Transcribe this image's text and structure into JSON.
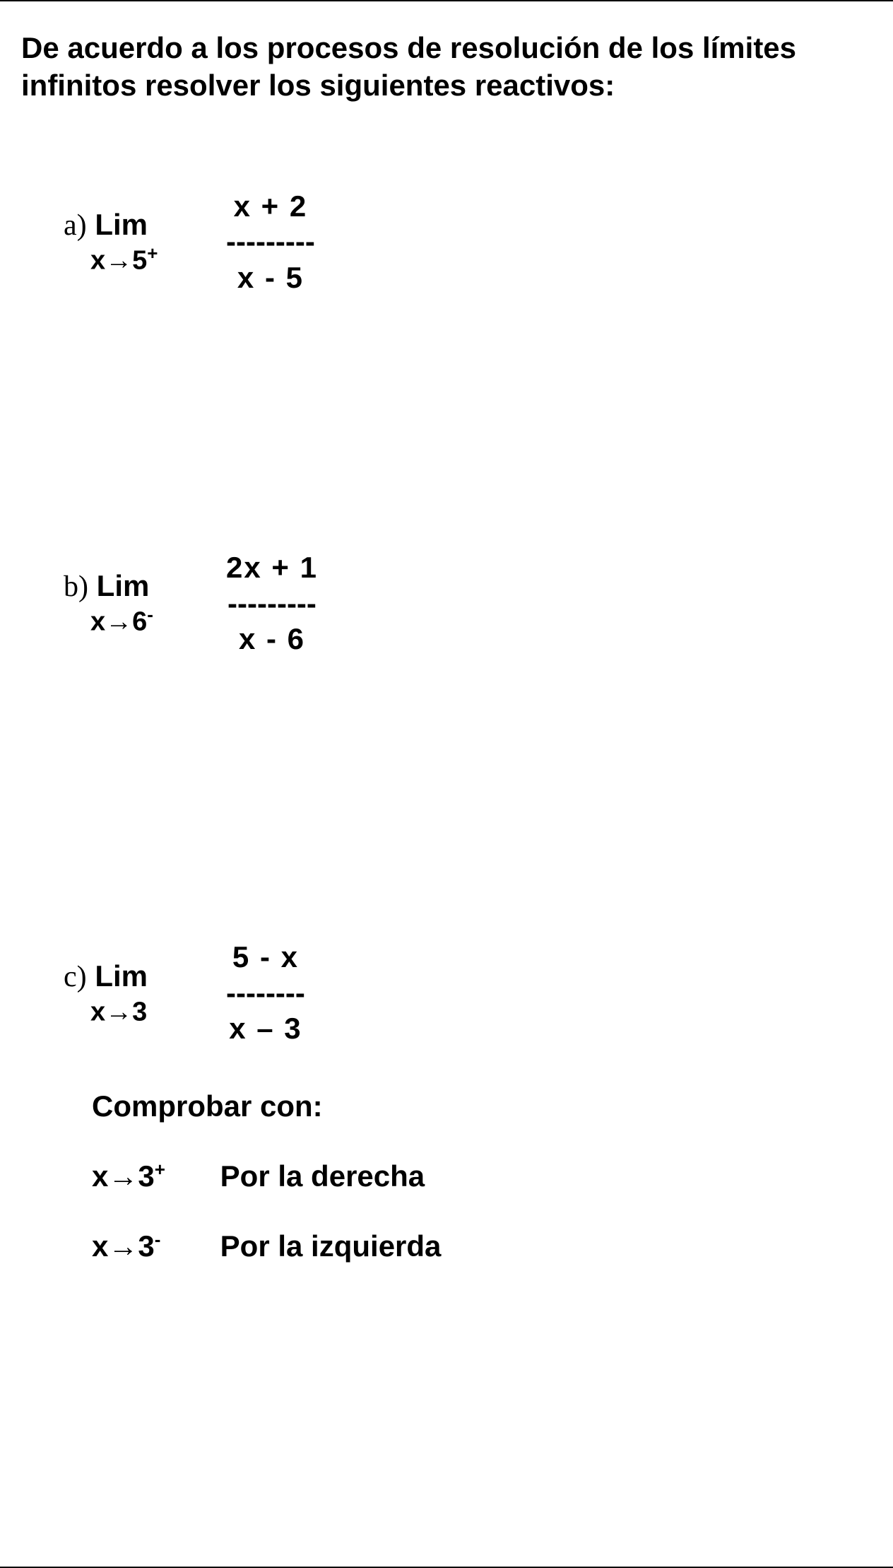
{
  "instructions": "De acuerdo a los procesos de resolución de los límites infinitos resolver los siguientes reactivos:",
  "problems": {
    "a": {
      "letter": "a)",
      "lim": "Lim",
      "approach_var": "x→5",
      "approach_sup": "+",
      "numerator": "x + 2",
      "dash": "---------",
      "denominator": "x  -  5"
    },
    "b": {
      "letter": "b)",
      "lim": "Lim",
      "approach_var": "x→6",
      "approach_sup": "-",
      "numerator": "2x + 1",
      "dash": "---------",
      "denominator": "x  -   6"
    },
    "c": {
      "letter": "c)",
      "lim": "Lim",
      "approach_var": "x→3",
      "approach_sup": "",
      "numerator": "5 - x",
      "dash": "--------",
      "denominator": "x – 3"
    }
  },
  "check": {
    "title": "Comprobar con:",
    "right_var": "x→3",
    "right_sup": "+",
    "right_label": "Por la derecha",
    "left_var": "x→3",
    "left_sup": "-",
    "left_label": "Por la izquierda"
  }
}
